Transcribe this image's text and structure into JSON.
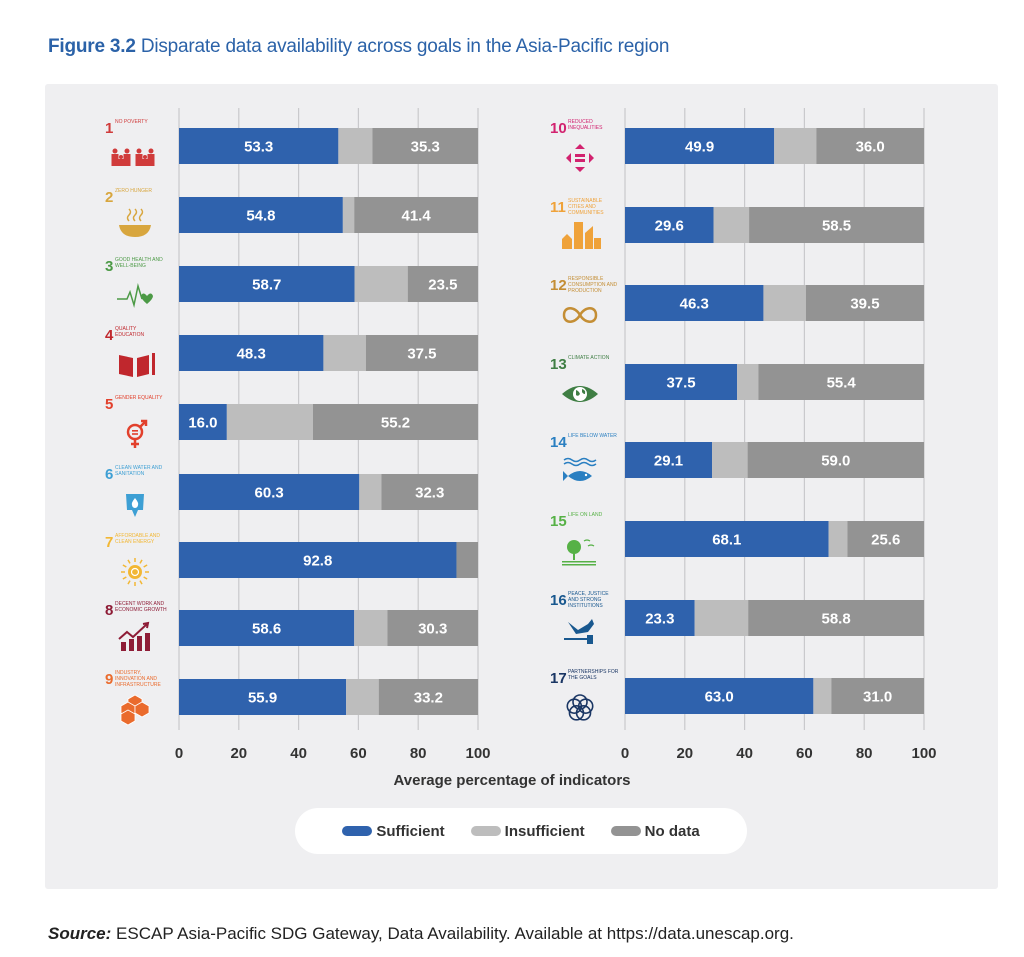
{
  "figure": {
    "number": "Figure 3.2",
    "title": "Disparate data availability across goals in the Asia-Pacific region"
  },
  "source": {
    "label": "Source:",
    "text": "ESCAP Asia-Pacific SDG Gateway, Data Availability. Available at https://data.unescap.org."
  },
  "colors": {
    "sufficient": "#2f62ad",
    "insufficient": "#bdbdbd",
    "no_data": "#939393",
    "panel": "#efeff1",
    "grid": "#c9c9cc"
  },
  "chart_data": {
    "type": "bar",
    "orientation": "horizontal",
    "stacked": true,
    "title": "Disparate data availability across goals in the Asia-Pacific region",
    "xlabel": "Average percentage of indicators",
    "ylabel": "",
    "xlim": [
      0,
      100
    ],
    "xticks": [
      "0",
      "20",
      "40",
      "60",
      "80",
      "100"
    ],
    "grid": true,
    "legend_position": "bottom-center",
    "legend": [
      "Sufficient",
      "Insufficient",
      "No data"
    ],
    "goals": [
      {
        "num": "1",
        "name": "NO POVERTY",
        "icon": "family-icon",
        "color": "#d03b3b",
        "sufficient": 53.3,
        "insufficient": 11.4,
        "no_data": 35.3,
        "label_s": "53.3",
        "label_n": "35.3",
        "panel": "left"
      },
      {
        "num": "2",
        "name": "ZERO HUNGER",
        "icon": "bowl-icon",
        "color": "#d8a63e",
        "sufficient": 54.8,
        "insufficient": 3.8,
        "no_data": 41.4,
        "label_s": "54.8",
        "label_n": "41.4",
        "panel": "left"
      },
      {
        "num": "3",
        "name": "GOOD HEALTH AND WELL-BEING",
        "icon": "heartbeat-icon",
        "color": "#4c9a46",
        "sufficient": 58.7,
        "insufficient": 17.8,
        "no_data": 23.5,
        "label_s": "58.7",
        "label_n": "23.5",
        "panel": "left"
      },
      {
        "num": "4",
        "name": "QUALITY EDUCATION",
        "icon": "book-icon",
        "color": "#c0272d",
        "sufficient": 48.3,
        "insufficient": 14.2,
        "no_data": 37.5,
        "label_s": "48.3",
        "label_n": "37.5",
        "panel": "left"
      },
      {
        "num": "5",
        "name": "GENDER EQUALITY",
        "icon": "gender-icon",
        "color": "#e2402c",
        "sufficient": 16.0,
        "insufficient": 28.8,
        "no_data": 55.2,
        "label_s": "16.0",
        "label_n": "55.2",
        "panel": "left"
      },
      {
        "num": "6",
        "name": "CLEAN WATER AND SANITATION",
        "icon": "water-glass-icon",
        "color": "#3d9fd4",
        "sufficient": 60.3,
        "insufficient": 7.4,
        "no_data": 32.3,
        "label_s": "60.3",
        "label_n": "32.3",
        "panel": "left"
      },
      {
        "num": "7",
        "name": "AFFORDABLE AND CLEAN ENERGY",
        "icon": "sun-power-icon",
        "color": "#f2b734",
        "sufficient": 92.8,
        "insufficient": 0.0,
        "no_data": 7.2,
        "label_s": "92.8",
        "label_n": "",
        "panel": "left"
      },
      {
        "num": "8",
        "name": "DECENT WORK AND ECONOMIC GROWTH",
        "icon": "growth-chart-icon",
        "color": "#8e1c36",
        "sufficient": 58.6,
        "insufficient": 11.1,
        "no_data": 30.3,
        "label_s": "58.6",
        "label_n": "30.3",
        "panel": "left"
      },
      {
        "num": "9",
        "name": "INDUSTRY, INNOVATION AND INFRASTRUCTURE",
        "icon": "cubes-icon",
        "color": "#ea6b2d",
        "sufficient": 55.9,
        "insufficient": 10.9,
        "no_data": 33.2,
        "label_s": "55.9",
        "label_n": "33.2",
        "panel": "left"
      },
      {
        "num": "10",
        "name": "REDUCED INEQUALITIES",
        "icon": "equality-arrows-icon",
        "color": "#d2226f",
        "sufficient": 49.9,
        "insufficient": 14.1,
        "no_data": 36.0,
        "label_s": "49.9",
        "label_n": "36.0",
        "panel": "right"
      },
      {
        "num": "11",
        "name": "SUSTAINABLE CITIES AND COMMUNITIES",
        "icon": "city-icon",
        "color": "#efa23a",
        "sufficient": 29.6,
        "insufficient": 11.9,
        "no_data": 58.5,
        "label_s": "29.6",
        "label_n": "58.5",
        "panel": "right"
      },
      {
        "num": "12",
        "name": "RESPONSIBLE CONSUMPTION AND PRODUCTION",
        "icon": "infinity-loop-icon",
        "color": "#c48e35",
        "sufficient": 46.3,
        "insufficient": 14.2,
        "no_data": 39.5,
        "label_s": "46.3",
        "label_n": "39.5",
        "panel": "right"
      },
      {
        "num": "13",
        "name": "CLIMATE ACTION",
        "icon": "earth-eye-icon",
        "color": "#3f7e44",
        "sufficient": 37.5,
        "insufficient": 7.1,
        "no_data": 55.4,
        "label_s": "37.5",
        "label_n": "55.4",
        "panel": "right"
      },
      {
        "num": "14",
        "name": "LIFE BELOW WATER",
        "icon": "fish-icon",
        "color": "#2a7fc1",
        "sufficient": 29.1,
        "insufficient": 11.9,
        "no_data": 59.0,
        "label_s": "29.1",
        "label_n": "59.0",
        "panel": "right"
      },
      {
        "num": "15",
        "name": "LIFE ON LAND",
        "icon": "tree-icon",
        "color": "#56b146",
        "sufficient": 68.1,
        "insufficient": 6.3,
        "no_data": 25.6,
        "label_s": "68.1",
        "label_n": "25.6",
        "panel": "right"
      },
      {
        "num": "16",
        "name": "PEACE, JUSTICE AND STRONG INSTITUTIONS",
        "icon": "dove-gavel-icon",
        "color": "#19588f",
        "sufficient": 23.3,
        "insufficient": 17.9,
        "no_data": 58.8,
        "label_s": "23.3",
        "label_n": "58.8",
        "panel": "right"
      },
      {
        "num": "17",
        "name": "PARTNERSHIPS FOR THE GOALS",
        "icon": "rings-icon",
        "color": "#1a3664",
        "sufficient": 63.0,
        "insufficient": 6.0,
        "no_data": 31.0,
        "label_s": "63.0",
        "label_n": "31.0",
        "panel": "right"
      }
    ]
  }
}
